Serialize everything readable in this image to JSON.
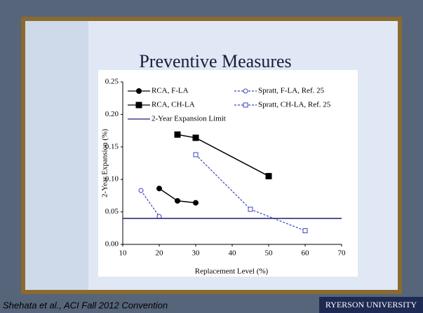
{
  "chart_data": {
    "type": "line",
    "title": "Preventive Measures",
    "x_label": "Replacement Level (%)",
    "y_label": "2-Year Expansion (%)",
    "xlim": [
      10,
      70
    ],
    "xticks": [
      10,
      20,
      30,
      40,
      50,
      60,
      70
    ],
    "ylim": [
      0,
      0.25
    ],
    "yticks": [
      {
        "value": 0,
        "label": "0.00"
      },
      0.05,
      {
        "value": 0.1,
        "label": "0.10"
      },
      0.15,
      {
        "value": 0.2,
        "label": "0.20"
      },
      0.25
    ],
    "series": [
      {
        "name": "RCA, F-LA",
        "color": "#000000",
        "marker": "circle",
        "filled": true,
        "dashed": false,
        "x": [
          20,
          25,
          30
        ],
        "values": [
          0.086,
          0.067,
          0.064
        ]
      },
      {
        "name": "Spratt, F-LA, Ref. 25",
        "color": "#3a44b8",
        "marker": "circle",
        "filled": false,
        "dashed": true,
        "x": [
          15,
          20
        ],
        "values": [
          0.083,
          0.043
        ]
      },
      {
        "name": "RCA, CH-LA",
        "color": "#000000",
        "marker": "square",
        "filled": true,
        "dashed": false,
        "x": [
          25,
          30,
          50
        ],
        "values": [
          0.169,
          0.164,
          0.105
        ]
      },
      {
        "name": "Spratt, CH-LA, Ref. 25",
        "color": "#3a44b8",
        "marker": "square",
        "filled": false,
        "dashed": true,
        "x": [
          30,
          45,
          60
        ],
        "values": [
          0.138,
          0.054,
          0.021
        ]
      },
      {
        "name": "2-Year Expansion Limit",
        "color": "#1a1f6e",
        "dashed": false,
        "x": [
          10,
          70
        ],
        "values": [
          0.04,
          0.04
        ]
      }
    ]
  },
  "footer": {
    "citation": "Shehata et al., ACI Fall 2012 Convention",
    "logo": "RYERSON UNIVERSITY"
  }
}
